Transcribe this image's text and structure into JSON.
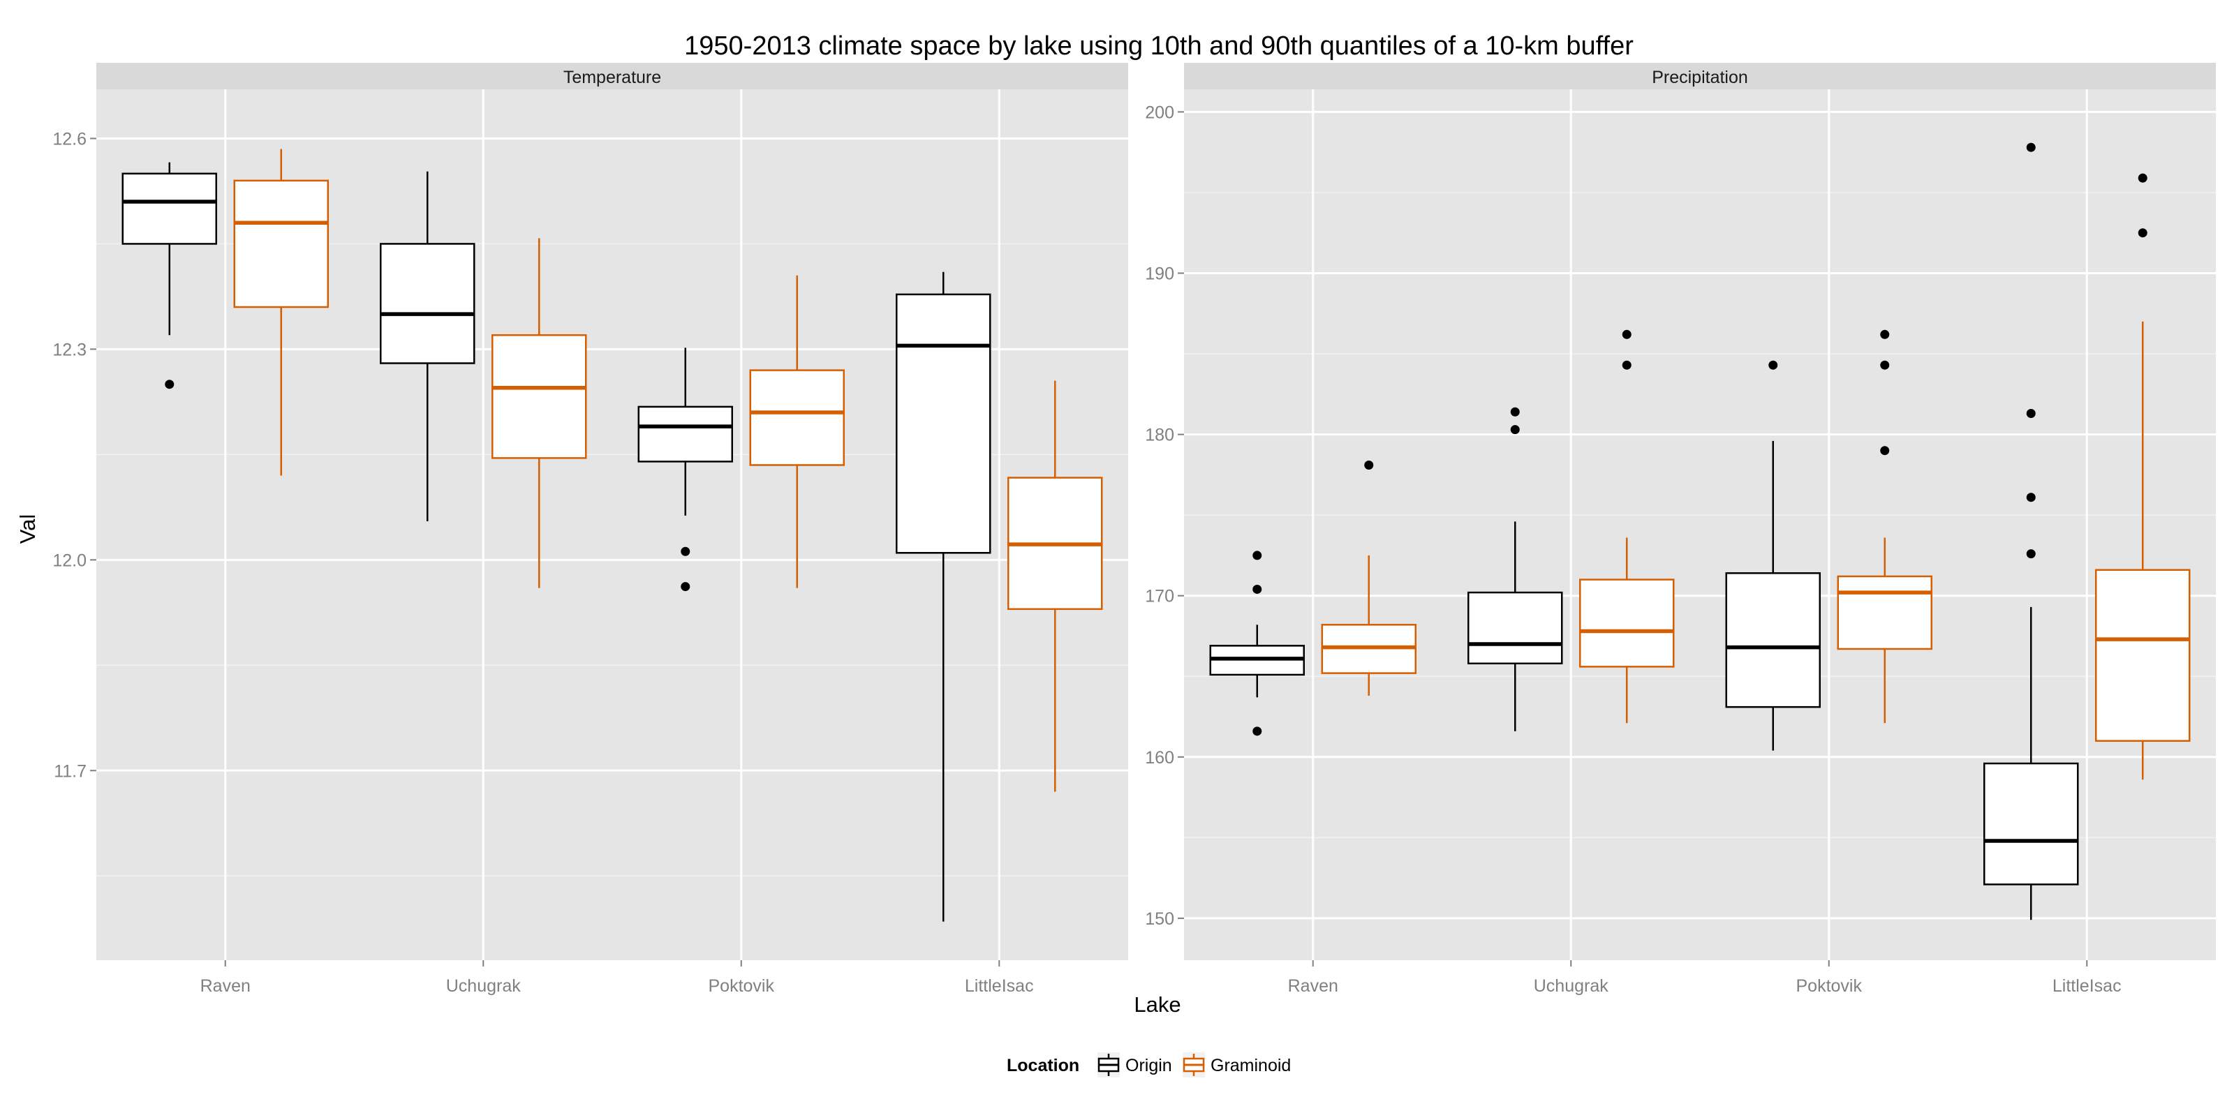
{
  "title": "1950-2013 climate space by lake using 10th and 90th quantiles of a 10-km buffer",
  "xlabel": "Lake",
  "ylabel": "Val",
  "legend": {
    "title": "Location",
    "position": "bottom",
    "items": [
      {
        "label": "Origin",
        "color": "#000000"
      },
      {
        "label": "Graminoid",
        "color": "#D55E00"
      }
    ]
  },
  "colors": {
    "panel_bg": "#E5E5E5",
    "strip_bg": "#D9D9D9",
    "grid": "#FFFFFF",
    "tick_text": "#808080",
    "origin": "#000000",
    "graminoid": "#D55E00"
  },
  "chart_data": {
    "type": "boxplot",
    "categories": [
      "Raven",
      "Uchugrak",
      "Poktovik",
      "LittleIsac"
    ],
    "series_names": [
      "Origin",
      "Graminoid"
    ],
    "grid": true,
    "panels": [
      {
        "strip": "Temperature",
        "ylim": [
          11.43,
          12.67
        ],
        "yticks": [
          11.7,
          12.0,
          12.3,
          12.6
        ],
        "ytick_labels": [
          "11.7",
          "12.0",
          "12.3",
          "12.6"
        ],
        "boxes": [
          {
            "category": "Raven",
            "series": "Origin",
            "whisker_low": 12.32,
            "q1": 12.45,
            "median": 12.51,
            "q3": 12.55,
            "whisker_high": 12.566,
            "outliers": [
              12.25
            ]
          },
          {
            "category": "Raven",
            "series": "Graminoid",
            "whisker_low": 12.12,
            "q1": 12.36,
            "median": 12.48,
            "q3": 12.54,
            "whisker_high": 12.585,
            "outliers": []
          },
          {
            "category": "Uchugrak",
            "series": "Origin",
            "whisker_low": 12.055,
            "q1": 12.28,
            "median": 12.35,
            "q3": 12.45,
            "whisker_high": 12.553,
            "outliers": []
          },
          {
            "category": "Uchugrak",
            "series": "Graminoid",
            "whisker_low": 11.96,
            "q1": 12.145,
            "median": 12.245,
            "q3": 12.32,
            "whisker_high": 12.458,
            "outliers": []
          },
          {
            "category": "Poktovik",
            "series": "Origin",
            "whisker_low": 12.063,
            "q1": 12.14,
            "median": 12.19,
            "q3": 12.218,
            "whisker_high": 12.302,
            "outliers": [
              12.012,
              11.962
            ]
          },
          {
            "category": "Poktovik",
            "series": "Graminoid",
            "whisker_low": 11.96,
            "q1": 12.135,
            "median": 12.21,
            "q3": 12.27,
            "whisker_high": 12.405,
            "outliers": []
          },
          {
            "category": "LittleIsac",
            "series": "Origin",
            "whisker_low": 11.485,
            "q1": 12.01,
            "median": 12.305,
            "q3": 12.378,
            "whisker_high": 12.41,
            "outliers": []
          },
          {
            "category": "LittleIsac",
            "series": "Graminoid",
            "whisker_low": 11.67,
            "q1": 11.93,
            "median": 12.022,
            "q3": 12.117,
            "whisker_high": 12.255,
            "outliers": []
          }
        ]
      },
      {
        "strip": "Precipitation",
        "ylim": [
          147.4,
          201.4
        ],
        "yticks": [
          150,
          160,
          170,
          180,
          190,
          200
        ],
        "ytick_labels": [
          "150",
          "160",
          "170",
          "180",
          "190",
          "200"
        ],
        "boxes": [
          {
            "category": "Raven",
            "series": "Origin",
            "whisker_low": 163.7,
            "q1": 165.1,
            "median": 166.1,
            "q3": 166.9,
            "whisker_high": 168.2,
            "outliers": [
              172.5,
              170.4,
              161.6
            ]
          },
          {
            "category": "Raven",
            "series": "Graminoid",
            "whisker_low": 163.8,
            "q1": 165.2,
            "median": 166.8,
            "q3": 168.2,
            "whisker_high": 172.5,
            "outliers": [
              178.1
            ]
          },
          {
            "category": "Uchugrak",
            "series": "Origin",
            "whisker_low": 161.6,
            "q1": 165.8,
            "median": 167.0,
            "q3": 170.2,
            "whisker_high": 174.6,
            "outliers": [
              181.4,
              180.3
            ]
          },
          {
            "category": "Uchugrak",
            "series": "Graminoid",
            "whisker_low": 162.1,
            "q1": 165.6,
            "median": 167.8,
            "q3": 171.0,
            "whisker_high": 173.6,
            "outliers": [
              186.2,
              184.3
            ]
          },
          {
            "category": "Poktovik",
            "series": "Origin",
            "whisker_low": 160.4,
            "q1": 163.1,
            "median": 166.8,
            "q3": 171.4,
            "whisker_high": 179.6,
            "outliers": [
              184.3
            ]
          },
          {
            "category": "Poktovik",
            "series": "Graminoid",
            "whisker_low": 162.1,
            "q1": 166.7,
            "median": 170.2,
            "q3": 171.2,
            "whisker_high": 173.6,
            "outliers": [
              186.2,
              184.3,
              179.0
            ]
          },
          {
            "category": "LittleIsac",
            "series": "Origin",
            "whisker_low": 149.9,
            "q1": 152.1,
            "median": 154.8,
            "q3": 159.6,
            "whisker_high": 169.3,
            "outliers": [
              197.8,
              181.3,
              176.1,
              172.6
            ]
          },
          {
            "category": "LittleIsac",
            "series": "Graminoid",
            "whisker_low": 158.6,
            "q1": 161.0,
            "median": 167.3,
            "q3": 171.6,
            "whisker_high": 187.0,
            "outliers": [
              195.9,
              192.5
            ]
          }
        ]
      }
    ]
  }
}
